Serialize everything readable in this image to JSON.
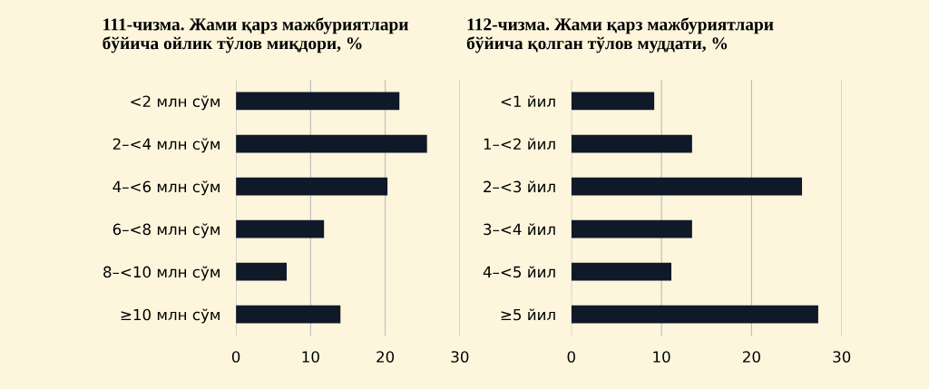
{
  "chart_data": [
    {
      "type": "bar",
      "orientation": "horizontal",
      "title": "111-чизма. Жами қарз мажбуриятлари\nбўйича ойлик тўлов миқдори, %",
      "categories": [
        "<2 млн сўм",
        "2–<4 млн сўм",
        "4–<6 млн сўм",
        "6–<8 млн сўм",
        "8–<10 млн сўм",
        "≥10 млн сўм"
      ],
      "values": [
        21.9,
        25.6,
        20.3,
        11.8,
        6.8,
        14.0
      ],
      "color": "#0f1928",
      "xlim": [
        0,
        30
      ],
      "xticks": [
        0,
        10,
        20,
        30
      ],
      "grid": "x"
    },
    {
      "type": "bar",
      "orientation": "horizontal",
      "title": "112-чизма. Жами қарз мажбуриятлари\nбўйича қолган тўлов муддати, %",
      "categories": [
        "<1 йил",
        "1–<2 йил",
        "2–<3 йил",
        "3–<4 йил",
        "4–<5 йил",
        "≥5 йил"
      ],
      "values": [
        9.2,
        13.4,
        25.6,
        13.4,
        11.1,
        27.4
      ],
      "color": "#0f1928",
      "xlim": [
        0,
        30
      ],
      "xticks": [
        0,
        10,
        20,
        30
      ],
      "grid": "x"
    }
  ]
}
